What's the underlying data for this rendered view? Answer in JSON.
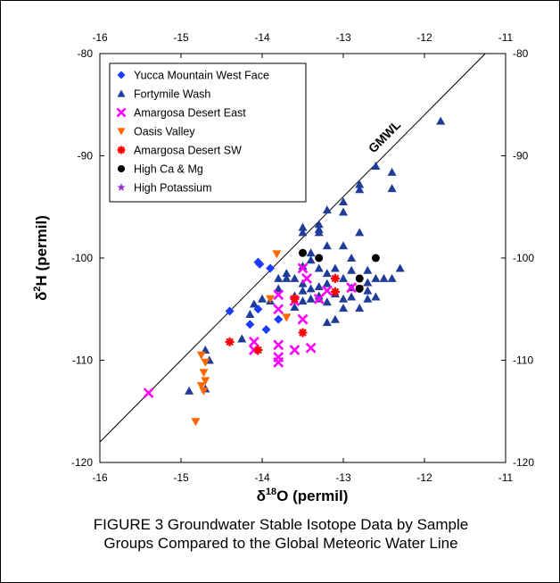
{
  "chart_data": {
    "type": "scatter",
    "xlabel_prefix": "δ",
    "xlabel_sup": "18",
    "xlabel_main": "O (permil)",
    "ylabel_prefix": "δ",
    "ylabel_sup": "2",
    "ylabel_main": "H (permil)",
    "xlim": [
      -16,
      -11
    ],
    "ylim": [
      -120,
      -80
    ],
    "x_ticks": [
      -16,
      -15,
      -14,
      -13,
      -12,
      -11
    ],
    "y_ticks": [
      -120,
      -110,
      -100,
      -90,
      -80
    ],
    "legend_position": "top-left",
    "reference_line": {
      "name": "GMWL",
      "slope": 8,
      "intercept": 10
    },
    "series": [
      {
        "name": "Yucca Mountain West Face",
        "marker": "diamond",
        "color": "#1a3cff",
        "points": [
          [
            -14.05,
            -100.4
          ],
          [
            -14.03,
            -100.6
          ],
          [
            -13.9,
            -101.0
          ],
          [
            -14.4,
            -105.2
          ],
          [
            -14.05,
            -105.0
          ],
          [
            -14.15,
            -106.5
          ],
          [
            -13.95,
            -107.0
          ],
          [
            -13.8,
            -106.0
          ]
        ]
      },
      {
        "name": "Fortymile Wash",
        "marker": "triangle-up",
        "color": "#1f3c99",
        "points": [
          [
            -11.8,
            -86.6
          ],
          [
            -12.6,
            -91.0
          ],
          [
            -12.4,
            -91.6
          ],
          [
            -12.4,
            -93.2
          ],
          [
            -12.8,
            -92.8
          ],
          [
            -12.8,
            -93.3
          ],
          [
            -13.0,
            -94.5
          ],
          [
            -13.0,
            -95.5
          ],
          [
            -13.2,
            -95.3
          ],
          [
            -13.3,
            -96.7
          ],
          [
            -13.3,
            -97.2
          ],
          [
            -13.3,
            -97.5
          ],
          [
            -13.5,
            -97.0
          ],
          [
            -13.5,
            -97.5
          ],
          [
            -12.8,
            -97.5
          ],
          [
            -13.0,
            -98.8
          ],
          [
            -13.2,
            -98.8
          ],
          [
            -13.4,
            -99.5
          ],
          [
            -13.4,
            -100.2
          ],
          [
            -13.5,
            -100.8
          ],
          [
            -13.3,
            -101.0
          ],
          [
            -13.2,
            -101.5
          ],
          [
            -13.1,
            -101.0
          ],
          [
            -12.9,
            -101.2
          ],
          [
            -12.9,
            -100.0
          ],
          [
            -12.7,
            -101.2
          ],
          [
            -12.6,
            -102.0
          ],
          [
            -12.5,
            -102.0
          ],
          [
            -12.3,
            -101.0
          ],
          [
            -12.4,
            -102.0
          ],
          [
            -12.7,
            -102.4
          ],
          [
            -12.9,
            -102.9
          ],
          [
            -13.0,
            -102.0
          ],
          [
            -13.2,
            -102.5
          ],
          [
            -13.3,
            -102.8
          ],
          [
            -13.4,
            -103.0
          ],
          [
            -13.5,
            -102.5
          ],
          [
            -13.6,
            -102.0
          ],
          [
            -13.7,
            -102.0
          ],
          [
            -13.8,
            -102.0
          ],
          [
            -13.8,
            -103.0
          ],
          [
            -13.7,
            -101.5
          ],
          [
            -13.6,
            -103.7
          ],
          [
            -13.5,
            -103.2
          ],
          [
            -13.4,
            -104.0
          ],
          [
            -13.3,
            -103.7
          ],
          [
            -13.1,
            -103.5
          ],
          [
            -12.9,
            -103.8
          ],
          [
            -12.7,
            -103.2
          ],
          [
            -12.6,
            -103.8
          ],
          [
            -12.7,
            -104.0
          ],
          [
            -13.0,
            -104.0
          ],
          [
            -13.2,
            -104.3
          ],
          [
            -13.3,
            -104.0
          ],
          [
            -13.5,
            -104.2
          ],
          [
            -13.6,
            -104.8
          ],
          [
            -13.9,
            -104.2
          ],
          [
            -14.0,
            -104.0
          ],
          [
            -14.1,
            -104.5
          ],
          [
            -14.15,
            -105.5
          ],
          [
            -14.25,
            -107.9
          ],
          [
            -13.0,
            -104.9
          ],
          [
            -13.1,
            -106.0
          ],
          [
            -13.2,
            -106.3
          ],
          [
            -12.8,
            -104.9
          ],
          [
            -14.7,
            -109.0
          ],
          [
            -14.65,
            -110.0
          ],
          [
            -14.9,
            -113.0
          ],
          [
            -14.7,
            -112.8
          ]
        ]
      },
      {
        "name": "Amargosa Desert East",
        "marker": "x",
        "color": "#ff00ff",
        "points": [
          [
            -15.4,
            -113.2
          ],
          [
            -14.1,
            -108.2
          ],
          [
            -14.1,
            -109.0
          ],
          [
            -13.8,
            -108.5
          ],
          [
            -13.8,
            -109.7
          ],
          [
            -13.8,
            -110.2
          ],
          [
            -13.6,
            -109.0
          ],
          [
            -13.4,
            -108.8
          ],
          [
            -13.5,
            -106.0
          ],
          [
            -13.3,
            -104.0
          ],
          [
            -13.6,
            -104.2
          ],
          [
            -13.8,
            -103.6
          ],
          [
            -13.8,
            -105.0
          ],
          [
            -13.5,
            -101.0
          ],
          [
            -13.45,
            -102.0
          ],
          [
            -13.2,
            -103.2
          ],
          [
            -12.9,
            -102.9
          ]
        ]
      },
      {
        "name": "Oasis Valley",
        "marker": "triangle-down",
        "color": "#ff6600",
        "points": [
          [
            -13.82,
            -99.6
          ],
          [
            -13.9,
            -104.0
          ],
          [
            -13.7,
            -105.8
          ],
          [
            -13.6,
            -104.0
          ],
          [
            -12.8,
            -103.0
          ],
          [
            -14.75,
            -109.5
          ],
          [
            -14.7,
            -110.2
          ],
          [
            -14.72,
            -111.2
          ],
          [
            -14.7,
            -112.0
          ],
          [
            -14.75,
            -112.5
          ],
          [
            -14.72,
            -113.0
          ],
          [
            -14.82,
            -116.0
          ]
        ]
      },
      {
        "name": "Amargosa Desert SW",
        "marker": "asterisk",
        "color": "#ff0000",
        "points": [
          [
            -14.4,
            -108.2
          ],
          [
            -14.05,
            -109.0
          ],
          [
            -13.6,
            -104.0
          ],
          [
            -13.5,
            -107.3
          ],
          [
            -13.1,
            -102.0
          ],
          [
            -13.1,
            -103.3
          ]
        ]
      },
      {
        "name": "High Ca & Mg",
        "marker": "circle",
        "color": "#000000",
        "points": [
          [
            -13.5,
            -99.5
          ],
          [
            -13.3,
            -100.0
          ],
          [
            -12.8,
            -102.0
          ],
          [
            -12.6,
            -100.0
          ],
          [
            -12.8,
            -103.0
          ]
        ]
      },
      {
        "name": "High Potassium",
        "marker": "star",
        "color": "#9933cc",
        "points": []
      }
    ]
  },
  "caption": {
    "line1": "FIGURE 3 Groundwater Stable Isotope Data by Sample",
    "line2": "Groups Compared to the Global Meteoric Water Line"
  }
}
